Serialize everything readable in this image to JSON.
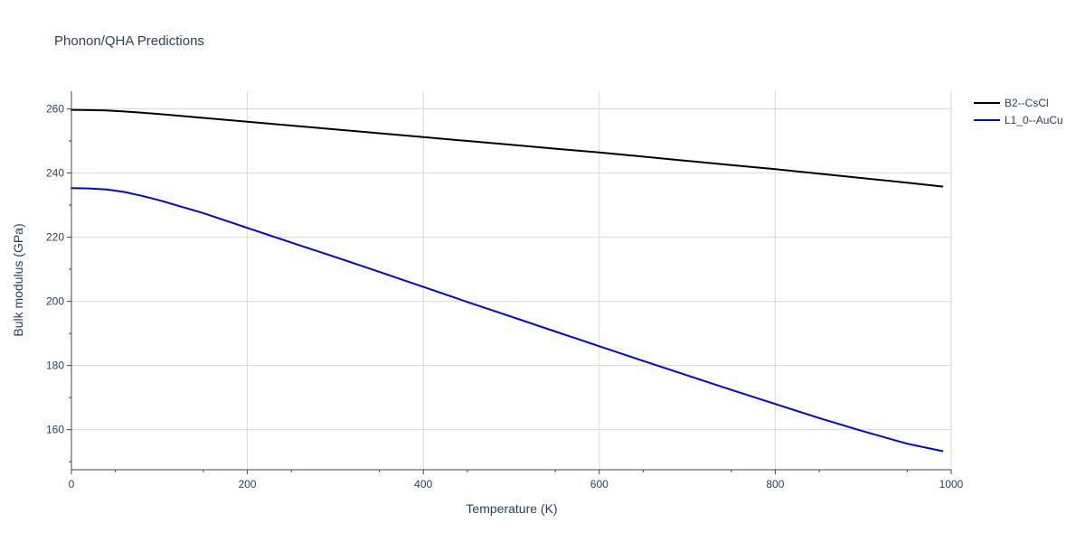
{
  "chart_data": {
    "type": "line",
    "title": "Phonon/QHA Predictions",
    "xlabel": "Temperature (K)",
    "ylabel": "Bulk modulus (GPa)",
    "xlim": [
      0,
      1000
    ],
    "ylim": [
      147.5,
      265.5
    ],
    "x_ticks": [
      0,
      200,
      400,
      600,
      800,
      1000
    ],
    "y_ticks": [
      160,
      180,
      200,
      220,
      240,
      260
    ],
    "grid": true,
    "legend_position": "top-right",
    "series": [
      {
        "name": "B2--CsCl",
        "color": "#000000",
        "x": [
          0,
          20,
          40,
          60,
          80,
          100,
          150,
          200,
          250,
          300,
          350,
          400,
          450,
          500,
          550,
          600,
          650,
          700,
          750,
          800,
          850,
          900,
          950,
          990
        ],
        "y": [
          259.7,
          259.6,
          259.5,
          259.2,
          258.8,
          258.4,
          257.2,
          256.0,
          254.8,
          253.6,
          252.4,
          251.2,
          250.0,
          248.8,
          247.6,
          246.4,
          245.1,
          243.8,
          242.5,
          241.2,
          239.8,
          238.4,
          237.0,
          235.8
        ]
      },
      {
        "name": "L1_0--AuCu",
        "color": "#0000ee",
        "x": [
          0,
          20,
          40,
          60,
          80,
          100,
          120,
          150,
          200,
          250,
          300,
          350,
          400,
          450,
          500,
          550,
          600,
          650,
          700,
          750,
          800,
          850,
          900,
          950,
          990
        ],
        "y": [
          235.3,
          235.2,
          234.9,
          234.1,
          232.9,
          231.5,
          229.9,
          227.5,
          222.9,
          218.3,
          213.8,
          209.2,
          204.5,
          199.8,
          195.2,
          190.6,
          186.0,
          181.4,
          176.9,
          172.4,
          168.0,
          163.6,
          159.5,
          155.6,
          153.3
        ]
      }
    ]
  }
}
